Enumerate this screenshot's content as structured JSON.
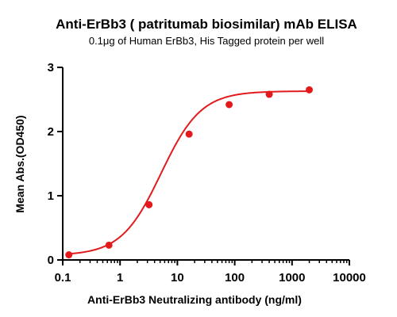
{
  "chart_data": {
    "type": "scatter",
    "title": "Anti-ErBb3 ( patritumab biosimilar) mAb ELISA",
    "subtitle": "0.1μg of Human ErBb3, His Tagged protein per well",
    "xlabel": "Anti-ErBb3 Neutralizing antibody (ng/ml)",
    "ylabel": "Mean Abs.(OD450)",
    "x_scale": "log",
    "xlim": [
      0.1,
      10000
    ],
    "ylim": [
      0,
      3
    ],
    "x_ticks": [
      "0.1",
      "1",
      "10",
      "100",
      "1000",
      "10000"
    ],
    "y_ticks": [
      "0",
      "1",
      "2",
      "3"
    ],
    "grid": false,
    "series": [
      {
        "x": [
          0.128,
          0.64,
          3.2,
          16,
          80,
          400,
          2000
        ],
        "y": [
          0.08,
          0.23,
          0.86,
          1.96,
          2.42,
          2.58,
          2.65
        ],
        "color": "#e31a1c",
        "fit": "4pl"
      }
    ]
  }
}
